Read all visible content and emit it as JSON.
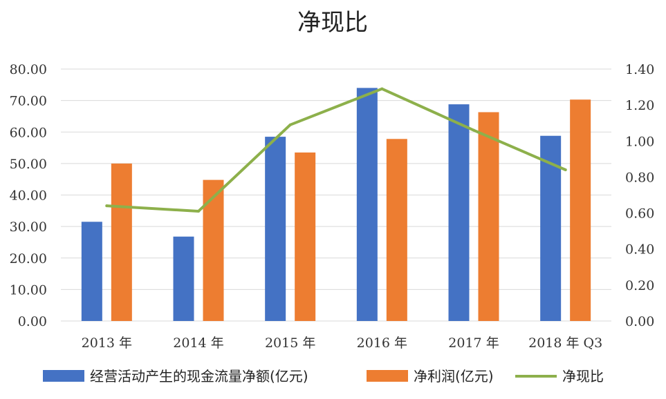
{
  "chart_data": {
    "type": "bar",
    "title": "净现比",
    "categories": [
      "2013 年",
      "2014 年",
      "2015 年",
      "2016 年",
      "2017 年",
      "2018 年 Q3"
    ],
    "series": [
      {
        "name": "经营活动产生的现金流量净额(亿元)",
        "type": "bar",
        "axis": "left",
        "color": "#4472C4",
        "values": [
          31.5,
          26.8,
          58.5,
          74.0,
          68.8,
          58.8
        ]
      },
      {
        "name": "净利润(亿元)",
        "type": "bar",
        "axis": "left",
        "color": "#ED7D31",
        "values": [
          50.0,
          44.8,
          53.5,
          57.8,
          66.3,
          70.3
        ]
      },
      {
        "name": "净现比",
        "type": "line",
        "axis": "right",
        "color": "#8DB04B",
        "values": [
          0.64,
          0.61,
          1.09,
          1.29,
          1.06,
          0.84
        ]
      }
    ],
    "y_left": {
      "ylim": [
        0,
        80
      ],
      "ticks": [
        "0.00",
        "10.00",
        "20.00",
        "30.00",
        "40.00",
        "50.00",
        "60.00",
        "70.00",
        "80.00"
      ]
    },
    "y_right": {
      "ylim": [
        0,
        1.4
      ],
      "ticks": [
        "0.00",
        "0.20",
        "0.40",
        "0.60",
        "0.80",
        "1.00",
        "1.20",
        "1.40"
      ]
    },
    "grid": true,
    "legend_position": "bottom",
    "xlabel": "",
    "ylabel": ""
  }
}
